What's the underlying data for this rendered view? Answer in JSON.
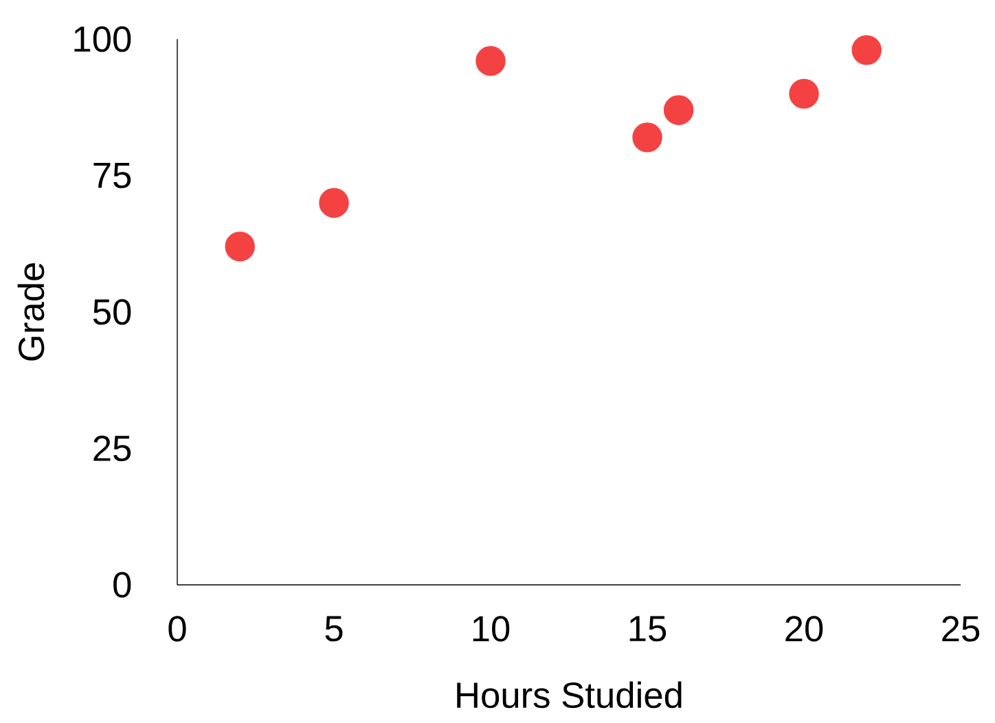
{
  "chart_data": {
    "type": "scatter",
    "xlabel": "Hours Studied",
    "ylabel": "Grade",
    "x": [
      2,
      5,
      10,
      15,
      16,
      20,
      22
    ],
    "values": [
      62,
      70,
      96,
      82,
      87,
      90,
      98
    ],
    "color": "#f44242",
    "xlim": [
      0,
      25
    ],
    "ylim": [
      0,
      100
    ],
    "xticks": [
      0,
      5,
      10,
      15,
      20,
      25
    ],
    "yticks": [
      0,
      25,
      50,
      75,
      100
    ],
    "grid": false
  }
}
